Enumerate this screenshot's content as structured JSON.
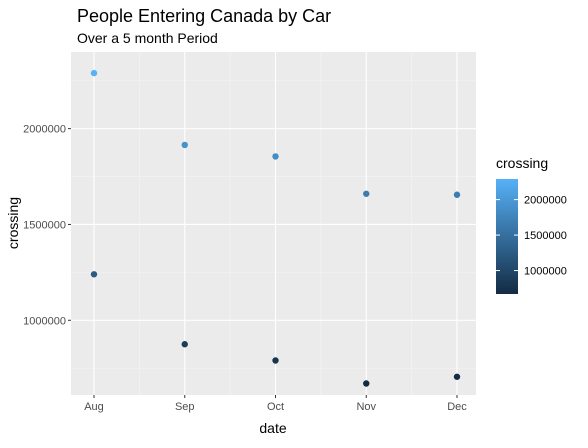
{
  "chart_data": {
    "type": "scatter",
    "title": "People Entering Canada by Car",
    "subtitle": "Over a 5 month Period",
    "xlabel": "date",
    "ylabel": "crossing",
    "categories": [
      "Aug",
      "Sep",
      "Oct",
      "Nov",
      "Dec"
    ],
    "x_ticks": [
      "Aug",
      "Sep",
      "Oct",
      "Nov",
      "Dec"
    ],
    "y_ticks": [
      1000000,
      1500000,
      2000000
    ],
    "y_tick_labels": [
      "1000000",
      "1500000",
      "2000000"
    ],
    "ylim": [
      610000,
      2400000
    ],
    "grid": true,
    "points": [
      {
        "x": "Aug",
        "y": 2290000
      },
      {
        "x": "Aug",
        "y": 1240000
      },
      {
        "x": "Sep",
        "y": 1915000
      },
      {
        "x": "Sep",
        "y": 875000
      },
      {
        "x": "Oct",
        "y": 1855000
      },
      {
        "x": "Oct",
        "y": 790000
      },
      {
        "x": "Nov",
        "y": 1660000
      },
      {
        "x": "Nov",
        "y": 670000
      },
      {
        "x": "Dec",
        "y": 1655000
      },
      {
        "x": "Dec",
        "y": 705000
      }
    ],
    "legend": {
      "title": "crossing",
      "position": "right",
      "ticks": [
        1000000,
        1500000,
        2000000
      ],
      "tick_labels": [
        "1000000",
        "1500000",
        "2000000"
      ],
      "range": [
        670000,
        2290000
      ]
    },
    "colors": {
      "low": "#132B43",
      "high": "#56B1F7",
      "panel_bg": "#EBEBEB",
      "grid_major": "#FFFFFF",
      "grid_minor": "#F5F5F5",
      "text": "#000000",
      "axis_text": "#4D4D4D"
    }
  }
}
